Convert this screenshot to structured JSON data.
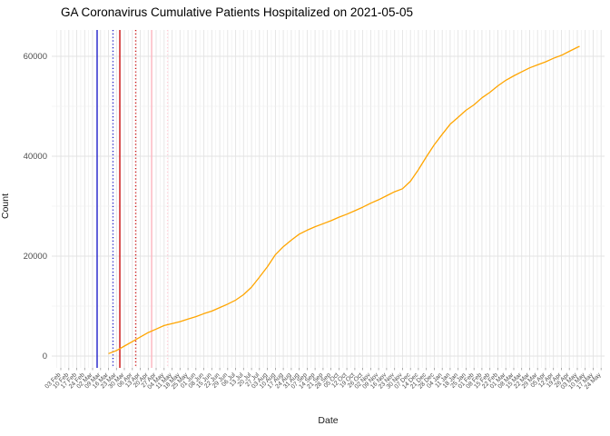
{
  "page": {
    "background": "#ffffff"
  },
  "chart_data": {
    "type": "line",
    "title": "GA Coronavirus Cumulative Patients Hospitalized on 2021-05-05",
    "xlabel": "Date",
    "ylabel": "Count",
    "grid": {
      "major_color": "#e3e3e3",
      "minor_color": "#f1f1f1",
      "grid_on": true
    },
    "legend": "none",
    "x_axis": {
      "axis_start_date": "2020-01-26",
      "axis_end_date": "2021-05-27",
      "first_tick_date": "2020-02-03",
      "tick_interval_days": 7,
      "tick_label_color": "#4d4d4d",
      "tick_labels": [
        "03 Feb",
        "10 Feb",
        "17 Feb",
        "24 Feb",
        "02 Mar",
        "09 Mar",
        "16 Mar",
        "23 Mar",
        "30 Mar",
        "06 Apr",
        "13 Apr",
        "20 Apr",
        "27 Apr",
        "04 May",
        "11 May",
        "18 May",
        "25 May",
        "01 Jun",
        "08 Jun",
        "15 Jun",
        "22 Jun",
        "29 Jun",
        "06 Jul",
        "13 Jul",
        "20 Jul",
        "27 Jul",
        "03 Aug",
        "10 Aug",
        "17 Aug",
        "24 Aug",
        "31 Aug",
        "07 Sep",
        "14 Sep",
        "21 Sep",
        "28 Sep",
        "05 Oct",
        "12 Oct",
        "19 Oct",
        "26 Oct",
        "02 Nov",
        "09 Nov",
        "16 Nov",
        "23 Nov",
        "30 Nov",
        "07 Dec",
        "14 Dec",
        "21 Dec",
        "28 Dec",
        "04 Jan",
        "11 Jan",
        "18 Jan",
        "25 Jan",
        "01 Feb",
        "08 Feb",
        "15 Feb",
        "22 Feb",
        "01 Mar",
        "08 Mar",
        "15 Mar",
        "22 Mar",
        "29 Mar",
        "05 Apr",
        "12 Apr",
        "19 Apr",
        "26 Apr",
        "03 May",
        "10 May",
        "17 May",
        "24 May"
      ]
    },
    "y_axis": {
      "ticks": [
        0,
        20000,
        40000,
        60000
      ],
      "minor_ticks": [
        10000,
        30000,
        50000
      ],
      "ylim": [
        0,
        65300
      ],
      "tick_label_color": "#4d4d4d"
    },
    "series": [
      {
        "name": "cumulative-patients-hospitalized",
        "color": "#FFA500",
        "start_date": "2020-03-16",
        "interval_days": 7,
        "values": [
          500,
          1100,
          2000,
          2900,
          3800,
          4700,
          5400,
          6100,
          6500,
          6900,
          7400,
          7900,
          8500,
          9000,
          9700,
          10400,
          11200,
          12300,
          13800,
          15800,
          17900,
          20300,
          21900,
          23200,
          24400,
          25200,
          25900,
          26500,
          27100,
          27800,
          28400,
          29100,
          29800,
          30600,
          31300,
          32100,
          32900,
          33500,
          35000,
          37300,
          39900,
          42300,
          44400,
          46400,
          47800,
          49200,
          50300,
          51700,
          52800,
          54100,
          55200,
          56100,
          56900,
          57700,
          58300,
          58900,
          59600,
          60200,
          61000,
          61800
        ],
        "end_date": "2021-05-05",
        "end_value": 62000
      }
    ],
    "vlines": [
      {
        "date": "2020-03-06",
        "color": "#2222CC",
        "style": "solid"
      },
      {
        "date": "2020-03-20",
        "color": "#2222CC",
        "style": "dotted"
      },
      {
        "date": "2020-03-26",
        "color": "#CC1111",
        "style": "solid"
      },
      {
        "date": "2020-04-09",
        "color": "#CC1111",
        "style": "dotted"
      },
      {
        "date": "2020-04-23",
        "color": "#FFB6C1",
        "style": "solid"
      },
      {
        "date": "2020-05-07",
        "color": "#FFCCD6",
        "style": "dotted"
      }
    ]
  }
}
